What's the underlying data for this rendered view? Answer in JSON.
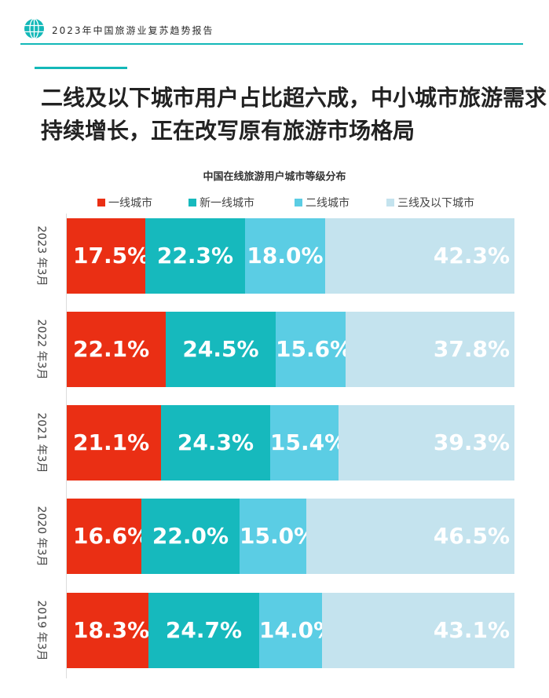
{
  "header": {
    "report_title": "2023年中国旅游业复苏趋势报告"
  },
  "headline": {
    "line1": "二线及以下城市用户占比超六成，中小城市旅游需求",
    "line2": "持续增长，正在改写原有旅游市场格局"
  },
  "colors": {
    "tier1": "#ea2f14",
    "new_tier1": "#16b9bd",
    "tier2": "#5bcde4",
    "tier3_below": "#c4e3ee",
    "accent": "#13b8b8"
  },
  "chart_data": {
    "type": "bar",
    "orientation": "horizontal",
    "stacked": true,
    "percent": true,
    "title": "中国在线旅游用户城市等级分布",
    "categories": [
      "2023年3月",
      "2022年3月",
      "2021年3月",
      "2020年3月",
      "2019年3月"
    ],
    "category_labels": [
      "2023 年3月",
      "2022 年3月",
      "2021 年3月",
      "2020 年3月",
      "2019 年3月"
    ],
    "series": [
      {
        "name": "一线城市",
        "values": [
          17.5,
          22.1,
          21.1,
          16.6,
          18.3
        ],
        "labels": [
          "17.5%",
          "22.1%",
          "21.1%",
          "16.6%",
          "18.3%"
        ]
      },
      {
        "name": "新一线城市",
        "values": [
          22.3,
          24.5,
          24.3,
          22.0,
          24.7
        ],
        "labels": [
          "22.3%",
          "24.5%",
          "24.3%",
          "22.0%",
          "24.7%"
        ]
      },
      {
        "name": "二线城市",
        "values": [
          18.0,
          15.6,
          15.4,
          15.0,
          14.0
        ],
        "labels": [
          "18.0%",
          "15.6%",
          "15.4%",
          "15.0%",
          "14.0%"
        ]
      },
      {
        "name": "三线及以下城市",
        "values": [
          42.3,
          37.8,
          39.3,
          46.5,
          43.1
        ],
        "labels": [
          "42.3%",
          "37.8%",
          "39.3%",
          "46.5%",
          "43.1%"
        ]
      }
    ],
    "xlim": [
      0,
      100
    ],
    "legend_position": "top",
    "grid": false
  }
}
